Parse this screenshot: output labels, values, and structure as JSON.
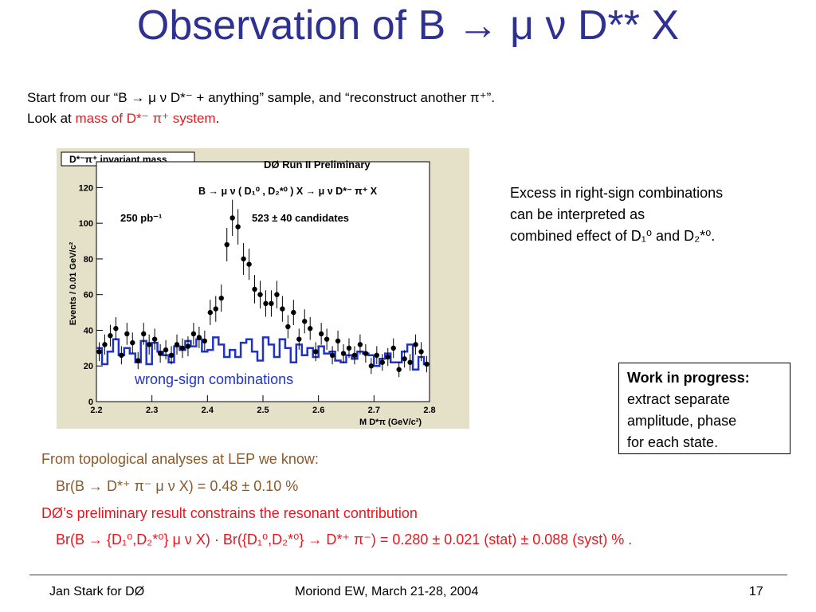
{
  "title": "Observation of B → μ ν D** X",
  "intro": {
    "line1": "Start from our “B → μ ν D*⁻ + anything” sample, and “reconstruct another π⁺”.",
    "line2_prefix": "Look at ",
    "line2_highlight": "mass of D*⁻ π⁺ system",
    "line2_suffix": "."
  },
  "plot": {
    "histogram_label": "D*⁻π⁺ invariant mass",
    "experiment_label": "DØ Run II Preliminary",
    "decay_label": "B → μ ν ( D₁⁰ , D₂*⁰ ) X → μ ν D*⁻ π⁺ X",
    "luminosity": "250 pb⁻¹",
    "candidates": "523 ± 40 candidates",
    "ylabel": "Events / 0.01 GeV/c²",
    "xlabel": "M D*π (GeV/c²)",
    "wrong_sign_label": "wrong-sign combinations"
  },
  "chart_data": {
    "type": "scatter",
    "title": "D*⁻π⁺ invariant mass",
    "xlabel": "M D*π (GeV/c²)",
    "ylabel": "Events / 0.01 GeV/c²",
    "xlim": [
      2.2,
      2.8
    ],
    "ylim": [
      0,
      130
    ],
    "x_ticks": [
      "2.2",
      "2.3",
      "2.4",
      "2.5",
      "2.6",
      "2.7",
      "2.8"
    ],
    "y_ticks": [
      "0",
      "20",
      "40",
      "60",
      "80",
      "100",
      "120"
    ],
    "series": [
      {
        "name": "right-sign",
        "marker": "points",
        "color": "#000000",
        "x": [
          2.205,
          2.215,
          2.225,
          2.235,
          2.245,
          2.255,
          2.265,
          2.275,
          2.285,
          2.295,
          2.305,
          2.315,
          2.325,
          2.335,
          2.345,
          2.355,
          2.365,
          2.375,
          2.385,
          2.395,
          2.405,
          2.415,
          2.425,
          2.435,
          2.445,
          2.455,
          2.465,
          2.475,
          2.485,
          2.495,
          2.505,
          2.515,
          2.525,
          2.535,
          2.545,
          2.555,
          2.565,
          2.575,
          2.585,
          2.595,
          2.605,
          2.615,
          2.625,
          2.635,
          2.645,
          2.655,
          2.665,
          2.675,
          2.685,
          2.695,
          2.705,
          2.715,
          2.725,
          2.735,
          2.745,
          2.755,
          2.765,
          2.775,
          2.785,
          2.795
        ],
        "y": [
          28,
          32,
          37,
          41,
          26,
          38,
          33,
          23,
          38,
          32,
          35,
          27,
          29,
          26,
          32,
          30,
          31,
          38,
          36,
          34,
          50,
          52,
          58,
          88,
          103,
          98,
          80,
          77,
          63,
          60,
          55,
          55,
          60,
          52,
          42,
          50,
          35,
          45,
          41,
          28,
          38,
          35,
          26,
          34,
          27,
          30,
          26,
          32,
          27,
          20,
          26,
          22,
          25,
          30,
          18,
          24,
          22,
          32,
          28,
          21
        ]
      },
      {
        "name": "wrong-sign combinations",
        "marker": "step",
        "color": "#1f33c8",
        "x": [
          2.205,
          2.215,
          2.225,
          2.235,
          2.245,
          2.255,
          2.265,
          2.275,
          2.285,
          2.295,
          2.305,
          2.315,
          2.325,
          2.335,
          2.345,
          2.355,
          2.365,
          2.375,
          2.385,
          2.395,
          2.405,
          2.415,
          2.425,
          2.435,
          2.445,
          2.455,
          2.465,
          2.475,
          2.485,
          2.495,
          2.505,
          2.515,
          2.525,
          2.535,
          2.545,
          2.555,
          2.565,
          2.575,
          2.585,
          2.595,
          2.605,
          2.615,
          2.625,
          2.635,
          2.645,
          2.655,
          2.665,
          2.675,
          2.685,
          2.695,
          2.705,
          2.715,
          2.725,
          2.735,
          2.745,
          2.755,
          2.765,
          2.775,
          2.785,
          2.795
        ],
        "y": [
          30,
          21,
          28,
          35,
          26,
          30,
          27,
          22,
          34,
          21,
          33,
          28,
          26,
          22,
          31,
          29,
          34,
          31,
          35,
          28,
          29,
          36,
          32,
          25,
          29,
          25,
          33,
          35,
          28,
          23,
          36,
          32,
          25,
          35,
          30,
          22,
          32,
          26,
          30,
          25,
          31,
          27,
          28,
          23,
          22,
          26,
          24,
          28,
          27,
          26,
          20,
          24,
          27,
          22,
          22,
          28,
          32,
          18,
          25,
          21
        ]
      }
    ]
  },
  "excess": {
    "line1": "Excess in right-sign combinations",
    "line2": "can be interpreted as",
    "line3": "combined effect of D₁⁰ and D₂*⁰."
  },
  "wip": {
    "heading": "Work in progress:",
    "line1": "extract separate",
    "line2": "amplitude, phase",
    "line3": "for each state."
  },
  "lep": {
    "line": "From topological analyses at LEP we know:",
    "br": "Br(B → D*⁺ π⁻ μ ν X) = 0.48 ± 0.10 %"
  },
  "d0": {
    "line": "DØ’s preliminary result constrains the resonant contribution",
    "br": "Br(B → {D₁⁰,D₂*⁰} μ ν X) · Br({D₁⁰,D₂*⁰} → D*⁺ π⁻) = 0.280 ± 0.021 (stat) ± 0.088 (syst) % ."
  },
  "footer": {
    "left": "Jan Stark for DØ",
    "center": "Moriond EW, March 21-28, 2004",
    "page": "17"
  },
  "colors": {
    "title": "#2e3192",
    "highlight": "#e8171f",
    "lep_text": "#8b5a2b",
    "wrong_sign": "#1f33c8",
    "plot_background": "#e5e1c9"
  }
}
